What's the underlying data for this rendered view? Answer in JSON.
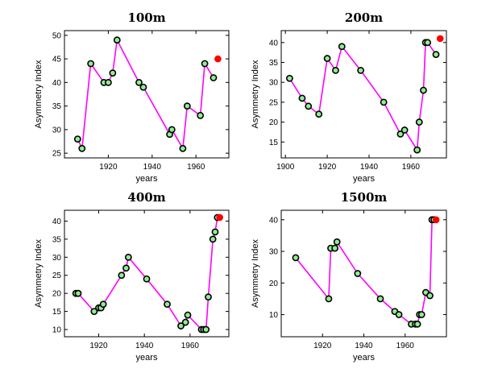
{
  "figure": {
    "line_color": "#ff00ff",
    "marker_fill": "#90ee90",
    "marker_edge": "#000000",
    "highlight_color": "#ff0000"
  },
  "chart_data": [
    {
      "type": "line",
      "title": "100m",
      "xlabel": "years",
      "ylabel": "Asymmetry Index",
      "xlim": [
        1900,
        1975
      ],
      "ylim": [
        24,
        51
      ],
      "xticks": [
        1920,
        1940,
        1960
      ],
      "yticks": [
        25,
        30,
        35,
        40,
        45,
        50
      ],
      "x": [
        1906,
        1908,
        1912,
        1918,
        1920,
        1922,
        1924,
        1934,
        1936,
        1948,
        1949,
        1954,
        1956,
        1962,
        1964,
        1968
      ],
      "y": [
        28,
        26,
        44,
        40,
        40,
        42,
        49,
        40,
        39,
        29,
        30,
        26,
        35,
        33,
        44,
        41
      ],
      "highlight": {
        "x": 1970,
        "y": 45
      }
    },
    {
      "type": "line",
      "title": "200m",
      "xlabel": "years",
      "ylabel": "Asymmetry Index",
      "xlim": [
        1898,
        1977
      ],
      "ylim": [
        11,
        43
      ],
      "xticks": [
        1900,
        1920,
        1940,
        1960
      ],
      "yticks": [
        15,
        20,
        25,
        30,
        35,
        40
      ],
      "x": [
        1902,
        1908,
        1911,
        1916,
        1920,
        1924,
        1927,
        1936,
        1947,
        1955,
        1957,
        1963,
        1964,
        1966,
        1967,
        1968,
        1972
      ],
      "y": [
        31,
        26,
        24,
        22,
        36,
        33,
        39,
        33,
        25,
        17,
        18,
        13,
        20,
        28,
        40,
        40,
        37
      ],
      "highlight": {
        "x": 1974,
        "y": 41
      }
    },
    {
      "type": "line",
      "title": "400m",
      "xlabel": "years",
      "ylabel": "Asymmetry Index",
      "xlim": [
        1905,
        1977
      ],
      "ylim": [
        8,
        43
      ],
      "xticks": [
        1920,
        1940,
        1960
      ],
      "yticks": [
        10,
        15,
        20,
        25,
        30,
        35,
        40
      ],
      "x": [
        1910,
        1911,
        1918,
        1920,
        1921,
        1922,
        1930,
        1932,
        1933,
        1941,
        1950,
        1956,
        1958,
        1959,
        1965,
        1966,
        1967,
        1968,
        1970,
        1971,
        1972
      ],
      "y": [
        20,
        20,
        15,
        16,
        16,
        17,
        25,
        27,
        30,
        24,
        17,
        11,
        12,
        14,
        10,
        10,
        10,
        19,
        35,
        37,
        41
      ],
      "highlight": {
        "x": 1973,
        "y": 41
      }
    },
    {
      "type": "line",
      "title": "1500m",
      "xlabel": "years",
      "ylabel": "Asymmetry Index",
      "xlim": [
        1900,
        1980
      ],
      "ylim": [
        3,
        43
      ],
      "xticks": [
        1920,
        1940,
        1960
      ],
      "yticks": [
        10,
        20,
        30,
        40
      ],
      "x": [
        1907,
        1923,
        1924,
        1926,
        1927,
        1937,
        1948,
        1955,
        1957,
        1963,
        1965,
        1966,
        1967,
        1968,
        1970,
        1972,
        1973,
        1974
      ],
      "y": [
        28,
        15,
        31,
        31,
        33,
        23,
        15,
        11,
        10,
        7,
        7,
        7,
        10,
        10,
        17,
        16,
        40,
        40
      ],
      "highlight": {
        "x": 1975,
        "y": 40
      }
    }
  ]
}
